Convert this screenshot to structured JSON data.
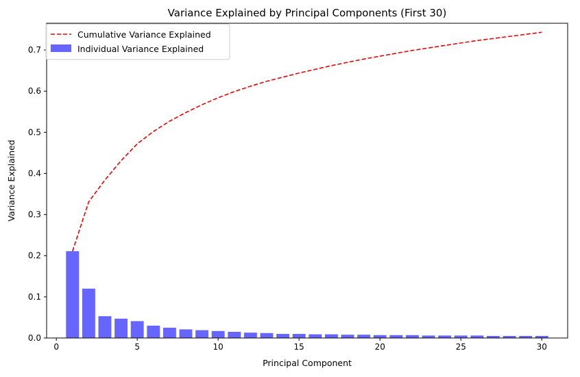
{
  "chart_data": {
    "type": "bar",
    "title": "Variance Explained by Principal Components (First 30)",
    "xlabel": "Principal Component",
    "ylabel": "Variance Explained",
    "xlim": [
      -0.6,
      31.6
    ],
    "ylim": [
      0,
      0.765
    ],
    "xticks": [
      0,
      5,
      10,
      15,
      20,
      25,
      30
    ],
    "xtick_labels": [
      "0",
      "5",
      "10",
      "15",
      "20",
      "25",
      "30"
    ],
    "yticks": [
      0.0,
      0.1,
      0.2,
      0.3,
      0.4,
      0.5,
      0.6,
      0.7
    ],
    "ytick_labels": [
      "0.0",
      "0.1",
      "0.2",
      "0.3",
      "0.4",
      "0.5",
      "0.6",
      "0.7"
    ],
    "grid": false,
    "legend_position": "top-left",
    "x": [
      1,
      2,
      3,
      4,
      5,
      6,
      7,
      8,
      9,
      10,
      11,
      12,
      13,
      14,
      15,
      16,
      17,
      18,
      19,
      20,
      21,
      22,
      23,
      24,
      25,
      26,
      27,
      28,
      29,
      30
    ],
    "series": [
      {
        "name": "Individual Variance Explained",
        "type": "bar",
        "color": "#6666ff",
        "values": [
          0.211,
          0.12,
          0.053,
          0.047,
          0.041,
          0.03,
          0.025,
          0.021,
          0.019,
          0.017,
          0.015,
          0.013,
          0.012,
          0.01,
          0.01,
          0.009,
          0.009,
          0.008,
          0.008,
          0.007,
          0.007,
          0.007,
          0.006,
          0.006,
          0.006,
          0.006,
          0.005,
          0.005,
          0.005,
          0.005
        ]
      },
      {
        "name": "Cumulative Variance Explained",
        "type": "line",
        "style": "dashed",
        "color": "#ee0000",
        "values": [
          0.211,
          0.331,
          0.384,
          0.431,
          0.472,
          0.502,
          0.527,
          0.548,
          0.567,
          0.584,
          0.599,
          0.612,
          0.624,
          0.634,
          0.644,
          0.653,
          0.662,
          0.67,
          0.678,
          0.685,
          0.692,
          0.699,
          0.705,
          0.711,
          0.717,
          0.723,
          0.728,
          0.733,
          0.738,
          0.743
        ]
      }
    ]
  }
}
